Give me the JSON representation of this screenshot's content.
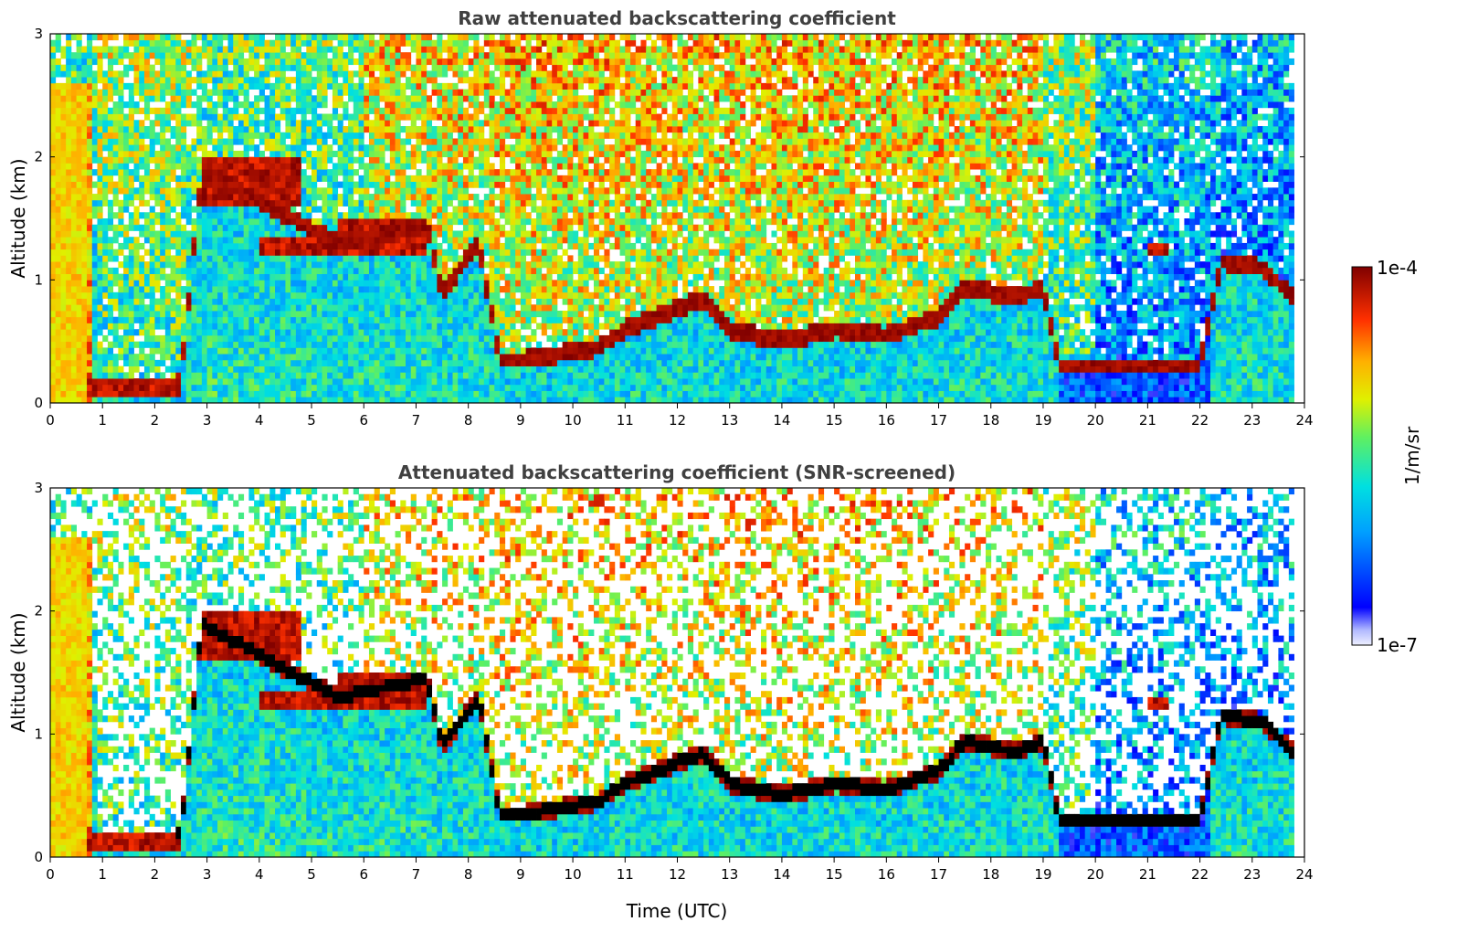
{
  "chart_data": [
    {
      "type": "heatmap",
      "title": "Raw attenuated backscattering coefficient",
      "xlabel": "",
      "ylabel": "Altitude (km)",
      "xlim": [
        0,
        24
      ],
      "ylim": [
        0,
        3
      ],
      "xticks": [
        0,
        1,
        2,
        3,
        4,
        5,
        6,
        7,
        8,
        9,
        10,
        11,
        12,
        13,
        14,
        15,
        16,
        17,
        18,
        19,
        20,
        21,
        22,
        23,
        24
      ],
      "yticks": [
        0,
        1,
        2,
        3
      ],
      "screened": false,
      "value_scale": "log",
      "features": [
        {
          "kind": "residual_layer",
          "x": [
            0,
            0.7
          ],
          "y": [
            0,
            2.6
          ],
          "value": 2e-05
        },
        {
          "kind": "aerosol_layer",
          "x": [
            0.7,
            2.5
          ],
          "y": [
            0.05,
            0.2
          ],
          "value": 0.0001
        },
        {
          "kind": "elevated_layer",
          "x": [
            2.9,
            4.8
          ],
          "y": [
            1.6,
            2.0
          ],
          "value": 0.0001
        },
        {
          "kind": "elevated_layer",
          "x": [
            4.0,
            5.5
          ],
          "y": [
            1.2,
            1.35
          ],
          "value": 0.0001
        },
        {
          "kind": "cloud_top",
          "x": [
            5.5,
            7.2
          ],
          "y": [
            1.2,
            1.5
          ],
          "value": 0.0001
        },
        {
          "kind": "boundary_layer_top",
          "x": [
            7.2,
            9.0
          ],
          "y": [
            0.3,
            1.3
          ],
          "value": 0.0001
        },
        {
          "kind": "boundary_layer_top",
          "x": [
            9.0,
            17.0
          ],
          "y": [
            0.35,
            0.9
          ],
          "value": 0.0001
        },
        {
          "kind": "boundary_layer_top",
          "x": [
            17.0,
            19.0
          ],
          "y": [
            0.6,
            1.1
          ],
          "value": 0.0001
        },
        {
          "kind": "elevated_layer",
          "x": [
            21.0,
            21.4
          ],
          "y": [
            1.2,
            1.3
          ],
          "value": 0.0001
        },
        {
          "kind": "boundary_layer_top",
          "x": [
            22.2,
            23.8
          ],
          "y": [
            0.85,
            1.2
          ],
          "value": 0.0001
        }
      ]
    },
    {
      "type": "heatmap",
      "title": "Attenuated backscattering coefficient (SNR-screened)",
      "xlabel": "Time (UTC)",
      "ylabel": "Altitude (km)",
      "xlim": [
        0,
        24
      ],
      "ylim": [
        0,
        3
      ],
      "xticks": [
        0,
        1,
        2,
        3,
        4,
        5,
        6,
        7,
        8,
        9,
        10,
        11,
        12,
        13,
        14,
        15,
        16,
        17,
        18,
        19,
        20,
        21,
        22,
        23,
        24
      ],
      "yticks": [
        0,
        1,
        2,
        3
      ],
      "screened": true,
      "value_scale": "log",
      "features": [
        {
          "kind": "residual_layer",
          "x": [
            0,
            0.7
          ],
          "y": [
            0,
            2.6
          ],
          "value": 2e-05
        },
        {
          "kind": "aerosol_layer",
          "x": [
            0.7,
            2.5
          ],
          "y": [
            0.05,
            0.2
          ],
          "value": 0.0001
        },
        {
          "kind": "elevated_layer",
          "x": [
            2.9,
            4.8
          ],
          "y": [
            1.6,
            2.0
          ],
          "value": 0.0001
        },
        {
          "kind": "elevated_layer",
          "x": [
            4.0,
            5.5
          ],
          "y": [
            1.2,
            1.35
          ],
          "value": 0.0001
        },
        {
          "kind": "cloud_top",
          "x": [
            5.5,
            7.2
          ],
          "y": [
            1.2,
            1.5
          ],
          "value": 0.0001
        },
        {
          "kind": "boundary_layer_top",
          "x": [
            7.2,
            9.0
          ],
          "y": [
            0.3,
            1.3
          ],
          "value": 0.0001
        },
        {
          "kind": "boundary_layer_top",
          "x": [
            9.0,
            17.0
          ],
          "y": [
            0.35,
            0.9
          ],
          "value": 0.0001
        },
        {
          "kind": "boundary_layer_top",
          "x": [
            17.0,
            19.0
          ],
          "y": [
            0.6,
            1.1
          ],
          "value": 0.0001
        },
        {
          "kind": "elevated_layer",
          "x": [
            21.0,
            21.4
          ],
          "y": [
            1.2,
            1.3
          ],
          "value": 0.0001
        },
        {
          "kind": "boundary_layer_top",
          "x": [
            22.2,
            23.8
          ],
          "y": [
            0.85,
            1.2
          ],
          "value": 0.0001
        }
      ]
    }
  ],
  "colorbar": {
    "label": "1/m/sr",
    "max_label": "1e-4",
    "min_label": "1e-7",
    "range": [
      1e-07,
      0.0001
    ],
    "scale": "log",
    "colormap": "jet"
  }
}
